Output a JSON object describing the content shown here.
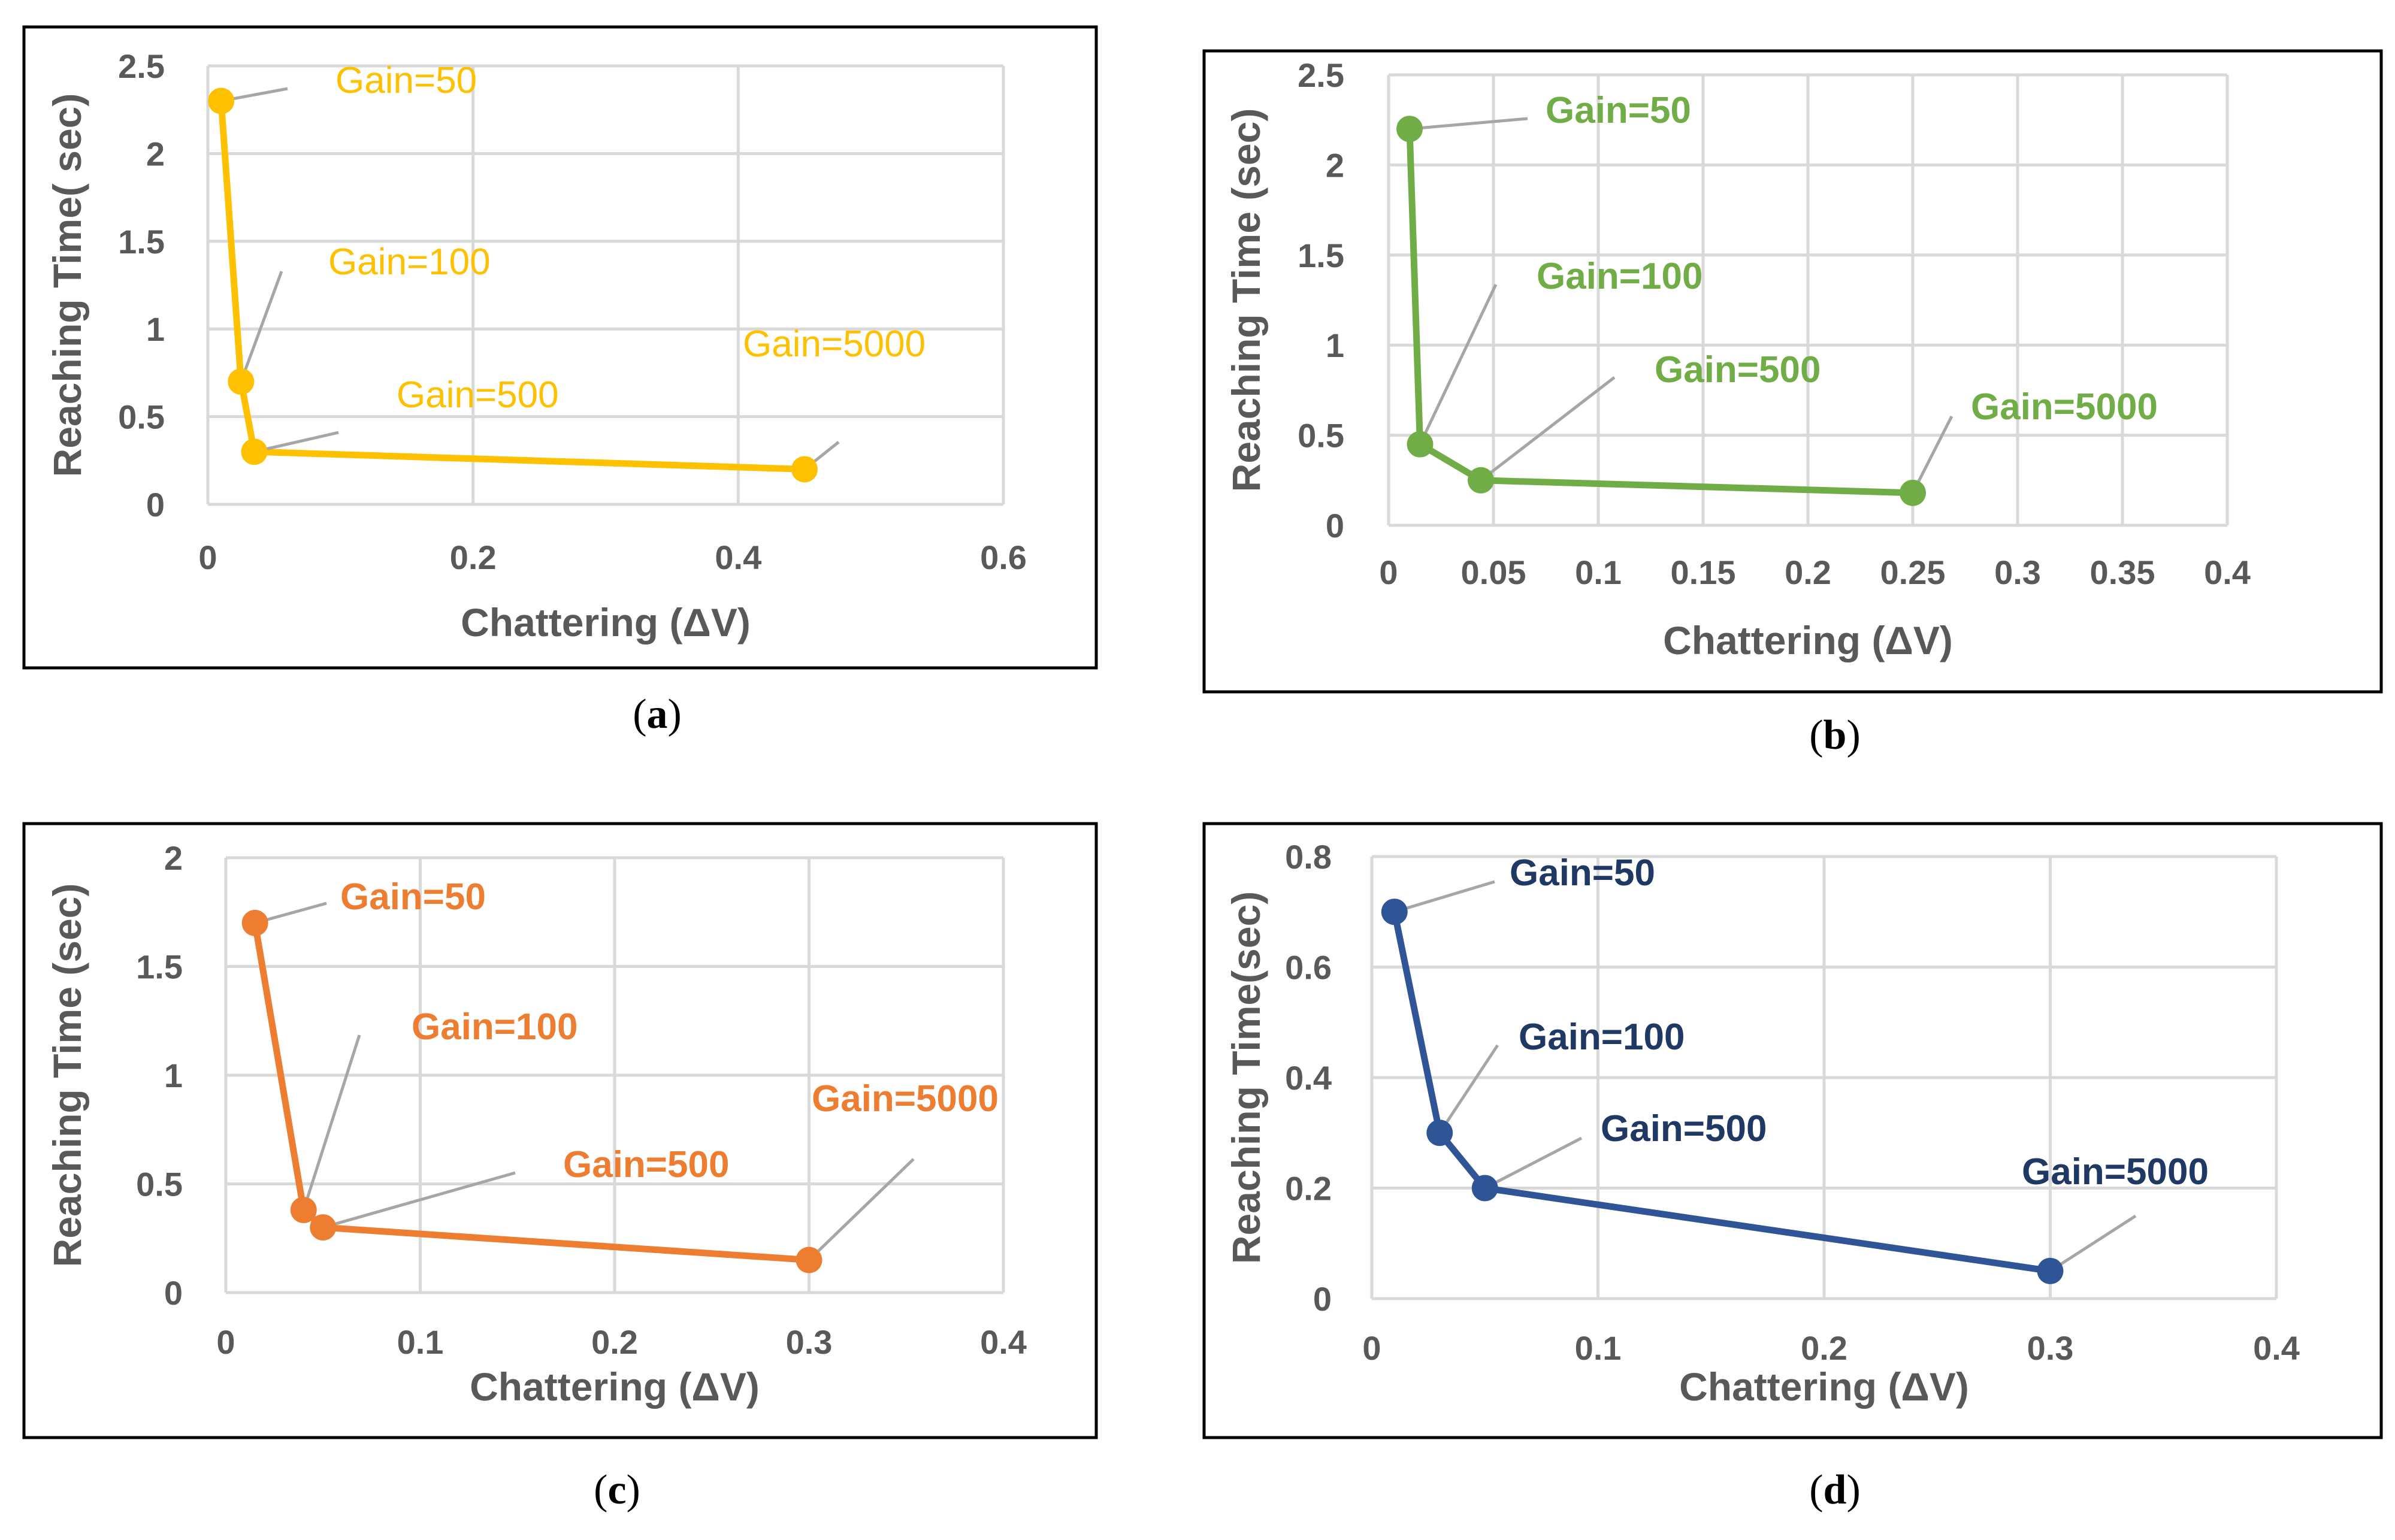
{
  "chart_data": [
    {
      "type": "line",
      "panel": "a",
      "caption_letter": "a",
      "color": "#FFC000",
      "bold_labels": false,
      "xlabel": "Chattering (ΔV)",
      "ylabel": "Reaching Time( sec)",
      "xlim": [
        0,
        0.6
      ],
      "ylim": [
        0,
        2.5
      ],
      "xticks": [
        "0",
        "0.2",
        "0.4",
        "0.6"
      ],
      "yticks": [
        "0",
        "0.5",
        "1",
        "1.5",
        "2",
        "2.5"
      ],
      "grid": true,
      "points": [
        {
          "x": 0.01,
          "y": 2.3,
          "label": "Gain=50"
        },
        {
          "x": 0.025,
          "y": 0.7,
          "label": "Gain=100"
        },
        {
          "x": 0.035,
          "y": 0.3,
          "label": "Gain=500"
        },
        {
          "x": 0.45,
          "y": 0.2,
          "label": "Gain=5000"
        }
      ]
    },
    {
      "type": "line",
      "panel": "b",
      "caption_letter": "b",
      "color": "#70AD47",
      "bold_labels": true,
      "xlabel": "Chattering (ΔV)",
      "ylabel": "Reaching Time (sec)",
      "xlim": [
        0,
        0.4
      ],
      "ylim": [
        0,
        2.5
      ],
      "xticks": [
        "0",
        "0.05",
        "0.1",
        "0.15",
        "0.2",
        "0.25",
        "0.3",
        "0.35",
        "0.4"
      ],
      "yticks": [
        "0",
        "0.5",
        "1",
        "1.5",
        "2",
        "2.5"
      ],
      "grid": true,
      "points": [
        {
          "x": 0.01,
          "y": 2.2,
          "label": "Gain=50"
        },
        {
          "x": 0.015,
          "y": 0.45,
          "label": "Gain=100"
        },
        {
          "x": 0.044,
          "y": 0.25,
          "label": "Gain=500"
        },
        {
          "x": 0.25,
          "y": 0.18,
          "label": "Gain=5000"
        }
      ]
    },
    {
      "type": "line",
      "panel": "c",
      "caption_letter": "c",
      "color": "#ED7D31",
      "bold_labels": true,
      "xlabel": "Chattering (ΔV)",
      "ylabel": "Reaching Time (sec)",
      "xlim": [
        0,
        0.4
      ],
      "ylim": [
        0,
        2
      ],
      "xticks": [
        "0",
        "0.1",
        "0.2",
        "0.3",
        "0.4"
      ],
      "yticks": [
        "0",
        "0.5",
        "1",
        "1.5",
        "2"
      ],
      "grid": true,
      "points": [
        {
          "x": 0.015,
          "y": 1.7,
          "label": "Gain=50"
        },
        {
          "x": 0.04,
          "y": 0.38,
          "label": "Gain=100"
        },
        {
          "x": 0.05,
          "y": 0.3,
          "label": "Gain=500"
        },
        {
          "x": 0.3,
          "y": 0.15,
          "label": "Gain=5000"
        }
      ]
    },
    {
      "type": "line",
      "panel": "d",
      "caption_letter": "d",
      "color": "#2F5597",
      "label_color": "#1F3864",
      "bold_labels": true,
      "xlabel": "Chattering (ΔV)",
      "ylabel": "Reaching Time(sec)",
      "xlim": [
        0,
        0.4
      ],
      "ylim": [
        0,
        0.8
      ],
      "xticks": [
        "0",
        "0.1",
        "0.2",
        "0.3",
        "0.4"
      ],
      "yticks": [
        "0",
        "0.2",
        "0.4",
        "0.6",
        "0.8"
      ],
      "grid": true,
      "points": [
        {
          "x": 0.01,
          "y": 0.7,
          "label": "Gain=50"
        },
        {
          "x": 0.03,
          "y": 0.3,
          "label": "Gain=100"
        },
        {
          "x": 0.05,
          "y": 0.2,
          "label": "Gain=500"
        },
        {
          "x": 0.3,
          "y": 0.05,
          "label": "Gain=5000"
        }
      ]
    }
  ]
}
